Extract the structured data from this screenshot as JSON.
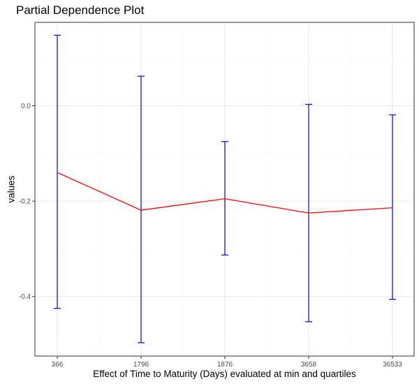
{
  "chart_data": {
    "type": "line",
    "title": "Partial Dependence Plot",
    "xlabel": "Effect of Time to Maturity (Days) evaluated at min and quartiles",
    "ylabel": "values",
    "categories": [
      "366",
      "1796",
      "1876",
      "3658",
      "36533"
    ],
    "series": [
      {
        "values": [
          -0.14,
          -0.219,
          -0.195,
          -0.225,
          -0.214
        ],
        "lower": [
          -0.425,
          -0.497,
          -0.313,
          -0.453,
          -0.406
        ],
        "upper": [
          0.148,
          0.062,
          -0.075,
          0.003,
          -0.019
        ]
      }
    ],
    "yticks": [
      0.0,
      -0.2,
      -0.4
    ],
    "ytick_labels": [
      "0.0",
      "-0.2",
      "-0.4"
    ],
    "ylim": [
      -0.525,
      0.175
    ],
    "grid": true,
    "legend": "none",
    "colors": {
      "line": "#ff0000",
      "errorbar": "#0000ff",
      "grid_major": "#ebebeb",
      "grid_minor": "#f4f4f4",
      "panel_border": "#333333"
    }
  }
}
